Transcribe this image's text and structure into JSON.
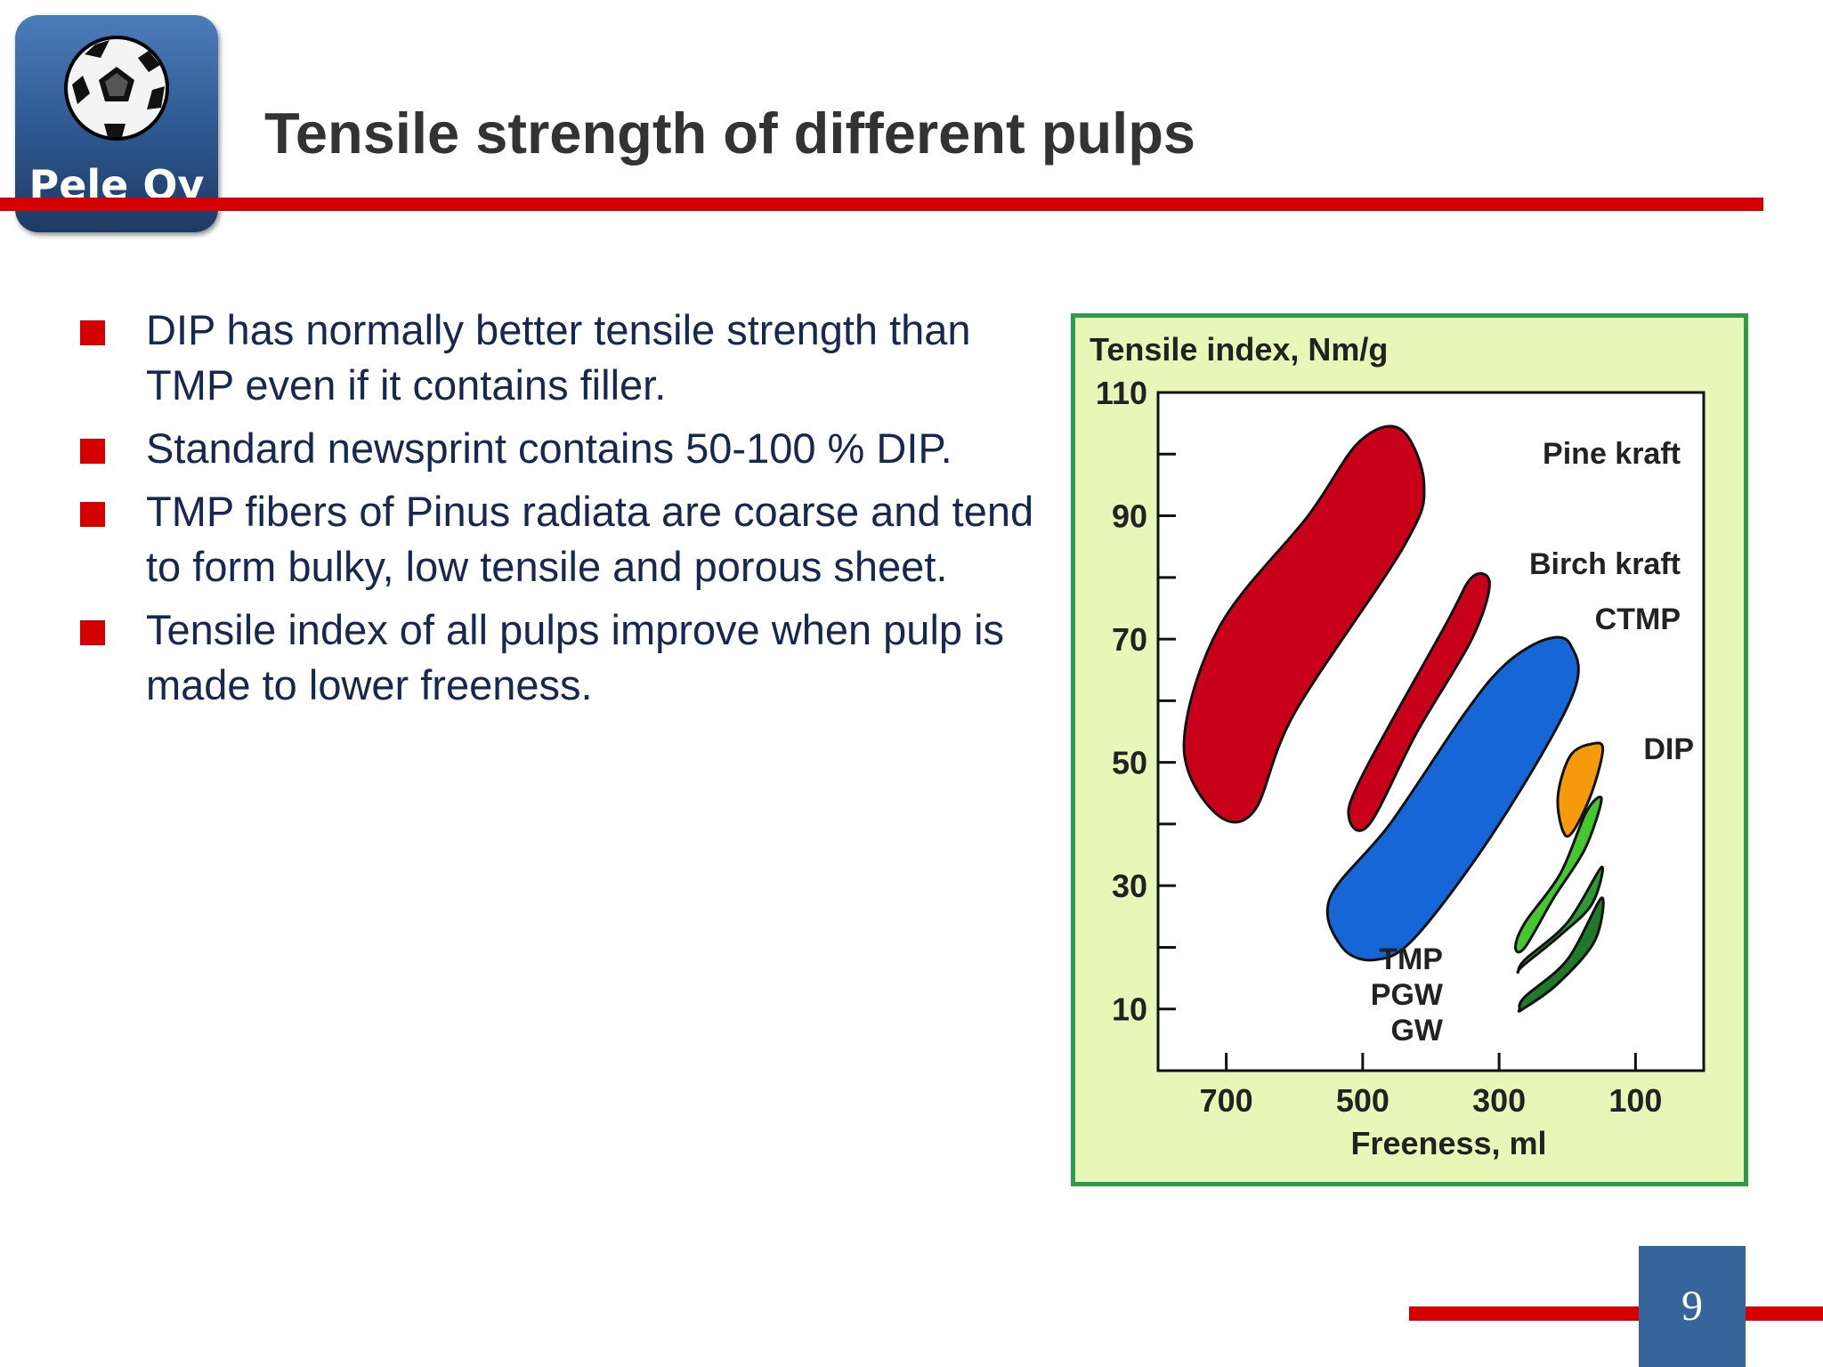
{
  "logo": {
    "text": "Pele Oy",
    "icon": "soccer-ball-icon",
    "colors": {
      "top": "#4b7dbb",
      "bottom": "#1d3a63"
    }
  },
  "title": "Tensile strength of different pulps",
  "bullets": [
    "DIP has normally better tensile strength than TMP even if it contains filler.",
    "Standard newsprint contains 50-100 % DIP.",
    "TMP fibers of Pinus radiata are coarse and tend to form bulky, low tensile and porous sheet.",
    "Tensile index of all pulps improve when pulp is made to lower freeness."
  ],
  "chart_data": {
    "type": "scatter",
    "title": "",
    "ylabel": "Tensile index, Nm/g",
    "xlabel": "Freeness, ml",
    "xlim": [
      800,
      0
    ],
    "ylim": [
      0,
      110
    ],
    "x_ticks": [
      700,
      500,
      300,
      100
    ],
    "y_ticks": [
      10,
      30,
      50,
      70,
      90,
      110
    ],
    "x_tick_labels": [
      "700",
      "500",
      "300",
      "100"
    ],
    "y_tick_labels": [
      "10",
      "30",
      "50",
      "70",
      "90",
      "110"
    ],
    "legend": "none",
    "series": [
      {
        "name": "Pine kraft",
        "label": "Pine kraft",
        "color": "#c8001a",
        "points": [
          [
            718,
            42
          ],
          [
            762,
            53
          ],
          [
            710,
            72
          ],
          [
            580,
            90
          ],
          [
            505,
            102
          ],
          [
            444,
            104
          ],
          [
            410,
            95
          ],
          [
            440,
            85
          ],
          [
            600,
            58
          ],
          [
            660,
            42
          ]
        ]
      },
      {
        "name": "Birch kraft",
        "label": "Birch kraft",
        "color": "#c8001a",
        "points": [
          [
            520,
            41
          ],
          [
            500,
            48
          ],
          [
            380,
            72
          ],
          [
            340,
            80
          ],
          [
            314,
            79
          ],
          [
            340,
            70
          ],
          [
            420,
            55
          ],
          [
            490,
            40
          ]
        ]
      },
      {
        "name": "CTMP",
        "label": "CTMP",
        "color": "#1666d8",
        "points": [
          [
            530,
            20
          ],
          [
            548,
            28
          ],
          [
            460,
            40
          ],
          [
            350,
            58
          ],
          [
            290,
            66
          ],
          [
            230,
            70
          ],
          [
            195,
            69
          ],
          [
            192,
            61
          ],
          [
            300,
            40
          ],
          [
            420,
            22
          ],
          [
            480,
            18
          ]
        ]
      },
      {
        "name": "TMP",
        "label": "TMP",
        "color": "#44c82e",
        "points": [
          [
            276,
            20
          ],
          [
            262,
            20
          ],
          [
            220,
            28
          ],
          [
            174,
            36
          ],
          [
            150,
            44
          ],
          [
            172,
            42
          ],
          [
            210,
            32
          ],
          [
            262,
            24
          ]
        ]
      },
      {
        "name": "PGW",
        "label": "PGW",
        "color": "#2a9a32",
        "points": [
          [
            272,
            16
          ],
          [
            262,
            18
          ],
          [
            200,
            24
          ],
          [
            150,
            33
          ],
          [
            164,
            27
          ],
          [
            210,
            22
          ],
          [
            265,
            17
          ]
        ]
      },
      {
        "name": "GW",
        "label": "GW",
        "color": "#1e7a28",
        "points": [
          [
            270,
            10
          ],
          [
            262,
            12
          ],
          [
            200,
            18
          ],
          [
            150,
            28
          ],
          [
            160,
            21
          ],
          [
            215,
            14
          ],
          [
            265,
            10
          ]
        ]
      },
      {
        "name": "DIP",
        "label": "DIP",
        "color": "#f59a0c",
        "points": [
          [
            200,
            38
          ],
          [
            168,
            44
          ],
          [
            148,
            52
          ],
          [
            164,
            53
          ],
          [
            196,
            51
          ],
          [
            214,
            44
          ]
        ]
      }
    ]
  },
  "page_number": "9"
}
